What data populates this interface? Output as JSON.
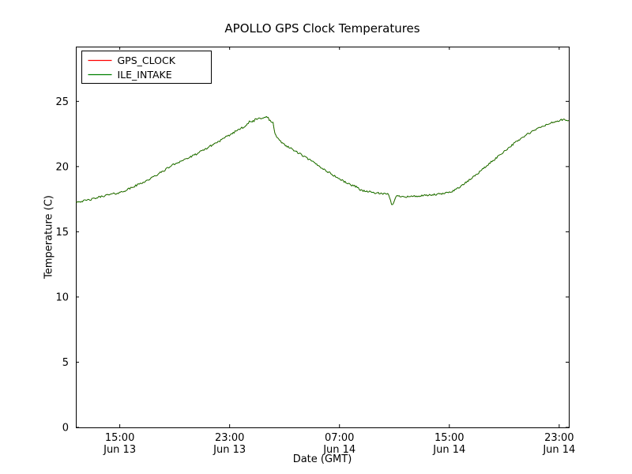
{
  "chart_data": {
    "type": "line",
    "title": "APOLLO GPS Clock Temperatures",
    "xlabel": "Date (GMT)",
    "ylabel": "Temperature (C)",
    "xlim_hours": [
      11.8,
      47.7
    ],
    "ylim": [
      0,
      29.2
    ],
    "yticks": [
      0,
      5,
      10,
      15,
      20,
      25
    ],
    "xticks": [
      {
        "hour": 15,
        "time": "15:00",
        "date": "Jun 13"
      },
      {
        "hour": 23,
        "time": "23:00",
        "date": "Jun 13"
      },
      {
        "hour": 31,
        "time": "07:00",
        "date": "Jun 14"
      },
      {
        "hour": 39,
        "time": "15:00",
        "date": "Jun 14"
      },
      {
        "hour": 47,
        "time": "23:00",
        "date": "Jun 14"
      }
    ],
    "grid": false,
    "legend": {
      "position": "upper-left",
      "entries": [
        {
          "label": "GPS_CLOCK",
          "color": "#ff0000"
        },
        {
          "label": "ILE_INTAKE",
          "color": "#008000"
        }
      ]
    },
    "series": [
      {
        "name": "GPS_CLOCK",
        "color": "#ff0000",
        "points": [
          [
            11.8,
            17.3
          ],
          [
            12.3,
            17.35
          ],
          [
            13.0,
            17.5
          ],
          [
            13.8,
            17.75
          ],
          [
            14.5,
            17.9
          ],
          [
            15.0,
            18.0
          ],
          [
            15.7,
            18.3
          ],
          [
            16.5,
            18.7
          ],
          [
            17.2,
            19.05
          ],
          [
            18.0,
            19.55
          ],
          [
            18.8,
            20.1
          ],
          [
            19.5,
            20.45
          ],
          [
            20.2,
            20.75
          ],
          [
            21.0,
            21.2
          ],
          [
            21.8,
            21.7
          ],
          [
            22.5,
            22.1
          ],
          [
            23.2,
            22.55
          ],
          [
            23.8,
            22.95
          ],
          [
            24.4,
            23.35
          ],
          [
            25.0,
            23.6
          ],
          [
            25.5,
            23.85
          ],
          [
            25.8,
            23.7
          ],
          [
            26.0,
            23.45
          ],
          [
            26.15,
            23.4
          ],
          [
            26.3,
            22.5
          ],
          [
            26.6,
            22.0
          ],
          [
            27.2,
            21.55
          ],
          [
            28.0,
            21.05
          ],
          [
            29.0,
            20.4
          ],
          [
            30.0,
            19.7
          ],
          [
            31.0,
            19.05
          ],
          [
            31.8,
            18.6
          ],
          [
            32.3,
            18.45
          ],
          [
            32.5,
            18.2
          ],
          [
            33.0,
            18.1
          ],
          [
            33.5,
            18.0
          ],
          [
            34.2,
            17.9
          ],
          [
            34.6,
            17.85
          ],
          [
            34.8,
            17.05
          ],
          [
            35.0,
            17.35
          ],
          [
            35.15,
            17.75
          ],
          [
            36.0,
            17.7
          ],
          [
            37.0,
            17.75
          ],
          [
            38.0,
            17.85
          ],
          [
            38.7,
            17.95
          ],
          [
            39.3,
            18.15
          ],
          [
            40.0,
            18.6
          ],
          [
            40.8,
            19.25
          ],
          [
            41.6,
            19.95
          ],
          [
            42.4,
            20.65
          ],
          [
            43.2,
            21.35
          ],
          [
            44.0,
            22.0
          ],
          [
            44.8,
            22.55
          ],
          [
            45.6,
            23.0
          ],
          [
            46.3,
            23.3
          ],
          [
            46.9,
            23.5
          ],
          [
            47.3,
            23.6
          ],
          [
            47.7,
            23.5
          ]
        ]
      },
      {
        "name": "ILE_INTAKE",
        "color": "#008000",
        "points": [
          [
            11.8,
            17.3
          ],
          [
            12.3,
            17.35
          ],
          [
            13.0,
            17.5
          ],
          [
            13.8,
            17.75
          ],
          [
            14.5,
            17.9
          ],
          [
            15.0,
            18.0
          ],
          [
            15.7,
            18.3
          ],
          [
            16.5,
            18.7
          ],
          [
            17.2,
            19.05
          ],
          [
            18.0,
            19.55
          ],
          [
            18.8,
            20.1
          ],
          [
            19.5,
            20.45
          ],
          [
            20.2,
            20.75
          ],
          [
            21.0,
            21.2
          ],
          [
            21.8,
            21.7
          ],
          [
            22.5,
            22.1
          ],
          [
            23.2,
            22.55
          ],
          [
            23.8,
            22.95
          ],
          [
            24.4,
            23.35
          ],
          [
            25.0,
            23.6
          ],
          [
            25.5,
            23.85
          ],
          [
            25.8,
            23.7
          ],
          [
            26.0,
            23.45
          ],
          [
            26.15,
            23.4
          ],
          [
            26.3,
            22.5
          ],
          [
            26.6,
            22.0
          ],
          [
            27.2,
            21.55
          ],
          [
            28.0,
            21.05
          ],
          [
            29.0,
            20.4
          ],
          [
            30.0,
            19.7
          ],
          [
            31.0,
            19.05
          ],
          [
            31.8,
            18.6
          ],
          [
            32.3,
            18.45
          ],
          [
            32.5,
            18.2
          ],
          [
            33.0,
            18.1
          ],
          [
            33.5,
            18.0
          ],
          [
            34.2,
            17.9
          ],
          [
            34.6,
            17.85
          ],
          [
            34.8,
            17.05
          ],
          [
            35.0,
            17.35
          ],
          [
            35.15,
            17.75
          ],
          [
            36.0,
            17.7
          ],
          [
            37.0,
            17.75
          ],
          [
            38.0,
            17.85
          ],
          [
            38.7,
            17.95
          ],
          [
            39.3,
            18.15
          ],
          [
            40.0,
            18.6
          ],
          [
            40.8,
            19.25
          ],
          [
            41.6,
            19.95
          ],
          [
            42.4,
            20.65
          ],
          [
            43.2,
            21.35
          ],
          [
            44.0,
            22.0
          ],
          [
            44.8,
            22.55
          ],
          [
            45.6,
            23.0
          ],
          [
            46.3,
            23.3
          ],
          [
            46.9,
            23.5
          ],
          [
            47.3,
            23.6
          ],
          [
            47.7,
            23.5
          ]
        ]
      }
    ]
  }
}
